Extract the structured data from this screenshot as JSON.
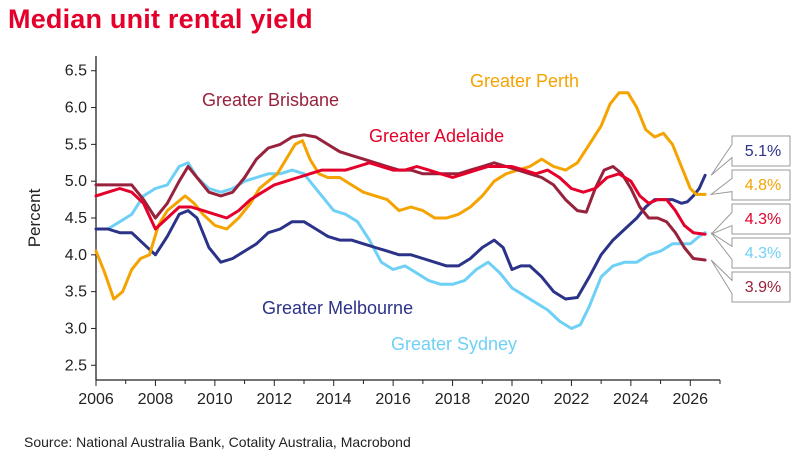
{
  "title": "Median unit rental yield",
  "source": "Source: National Australia Bank, Cotality Australia, Macrobond",
  "colors": {
    "title": "#e4002b",
    "Greater Perth": "#f5a300",
    "Greater Brisbane": "#98223c",
    "Greater Adelaide": "#e4002b",
    "Greater Melbourne": "#2b3388",
    "Greater Sydney": "#6fd0f6"
  },
  "chart_data": {
    "type": "line",
    "ylabel": "Percent",
    "xlabel": "",
    "xlim": [
      2006,
      2027
    ],
    "ylim": [
      2.3,
      6.7
    ],
    "xticks": [
      "2006",
      "2008",
      "2010",
      "2012",
      "2014",
      "2016",
      "2018",
      "2020",
      "2022",
      "2024",
      "2026"
    ],
    "yticks": [
      "2.5",
      "3.0",
      "3.5",
      "4.0",
      "4.5",
      "5.0",
      "5.5",
      "6.0",
      "6.5"
    ],
    "series": [
      {
        "name": "Greater Perth",
        "end_label": "4.8%",
        "points": [
          [
            2006,
            4.05
          ],
          [
            2006.3,
            3.75
          ],
          [
            2006.6,
            3.4
          ],
          [
            2006.9,
            3.5
          ],
          [
            2007.2,
            3.8
          ],
          [
            2007.5,
            3.95
          ],
          [
            2007.8,
            4.0
          ],
          [
            2008.1,
            4.4
          ],
          [
            2008.4,
            4.6
          ],
          [
            2008.7,
            4.7
          ],
          [
            2009.0,
            4.8
          ],
          [
            2009.3,
            4.7
          ],
          [
            2009.6,
            4.55
          ],
          [
            2010.0,
            4.4
          ],
          [
            2010.4,
            4.35
          ],
          [
            2010.8,
            4.5
          ],
          [
            2011.2,
            4.7
          ],
          [
            2011.5,
            4.9
          ],
          [
            2011.8,
            5.0
          ],
          [
            2012.1,
            5.1
          ],
          [
            2012.4,
            5.3
          ],
          [
            2012.7,
            5.5
          ],
          [
            2012.95,
            5.55
          ],
          [
            2013.2,
            5.3
          ],
          [
            2013.5,
            5.1
          ],
          [
            2013.8,
            5.05
          ],
          [
            2014.2,
            5.05
          ],
          [
            2014.6,
            4.95
          ],
          [
            2015.0,
            4.85
          ],
          [
            2015.4,
            4.8
          ],
          [
            2015.8,
            4.75
          ],
          [
            2016.2,
            4.6
          ],
          [
            2016.6,
            4.65
          ],
          [
            2017.0,
            4.6
          ],
          [
            2017.4,
            4.5
          ],
          [
            2017.8,
            4.5
          ],
          [
            2018.2,
            4.55
          ],
          [
            2018.6,
            4.65
          ],
          [
            2019.0,
            4.8
          ],
          [
            2019.4,
            5.0
          ],
          [
            2019.8,
            5.1
          ],
          [
            2020.2,
            5.15
          ],
          [
            2020.6,
            5.2
          ],
          [
            2021.0,
            5.3
          ],
          [
            2021.4,
            5.2
          ],
          [
            2021.8,
            5.15
          ],
          [
            2022.2,
            5.25
          ],
          [
            2022.6,
            5.5
          ],
          [
            2023.0,
            5.75
          ],
          [
            2023.3,
            6.05
          ],
          [
            2023.6,
            6.2
          ],
          [
            2023.9,
            6.2
          ],
          [
            2024.2,
            6.0
          ],
          [
            2024.5,
            5.7
          ],
          [
            2024.8,
            5.6
          ],
          [
            2025.1,
            5.65
          ],
          [
            2025.4,
            5.5
          ],
          [
            2025.7,
            5.2
          ],
          [
            2026.0,
            4.9
          ],
          [
            2026.2,
            4.82
          ],
          [
            2026.5,
            4.82
          ]
        ]
      },
      {
        "name": "Greater Brisbane",
        "end_label": "3.9%",
        "points": [
          [
            2006,
            4.95
          ],
          [
            2006.4,
            4.95
          ],
          [
            2006.8,
            4.95
          ],
          [
            2007.2,
            4.95
          ],
          [
            2007.6,
            4.75
          ],
          [
            2008.0,
            4.5
          ],
          [
            2008.4,
            4.7
          ],
          [
            2008.8,
            5.0
          ],
          [
            2009.1,
            5.2
          ],
          [
            2009.4,
            5.05
          ],
          [
            2009.8,
            4.85
          ],
          [
            2010.2,
            4.8
          ],
          [
            2010.6,
            4.85
          ],
          [
            2011.0,
            5.05
          ],
          [
            2011.4,
            5.3
          ],
          [
            2011.8,
            5.45
          ],
          [
            2012.2,
            5.5
          ],
          [
            2012.6,
            5.6
          ],
          [
            2013.0,
            5.63
          ],
          [
            2013.4,
            5.6
          ],
          [
            2013.8,
            5.5
          ],
          [
            2014.2,
            5.4
          ],
          [
            2014.6,
            5.35
          ],
          [
            2015.0,
            5.3
          ],
          [
            2015.4,
            5.25
          ],
          [
            2015.8,
            5.2
          ],
          [
            2016.2,
            5.15
          ],
          [
            2016.6,
            5.15
          ],
          [
            2017.0,
            5.1
          ],
          [
            2017.4,
            5.1
          ],
          [
            2017.8,
            5.1
          ],
          [
            2018.2,
            5.1
          ],
          [
            2018.6,
            5.15
          ],
          [
            2019.0,
            5.2
          ],
          [
            2019.4,
            5.25
          ],
          [
            2019.8,
            5.2
          ],
          [
            2020.2,
            5.15
          ],
          [
            2020.6,
            5.1
          ],
          [
            2021.0,
            5.05
          ],
          [
            2021.4,
            4.95
          ],
          [
            2021.8,
            4.75
          ],
          [
            2022.2,
            4.6
          ],
          [
            2022.5,
            4.58
          ],
          [
            2022.8,
            4.9
          ],
          [
            2023.1,
            5.15
          ],
          [
            2023.4,
            5.2
          ],
          [
            2023.7,
            5.1
          ],
          [
            2024.0,
            4.9
          ],
          [
            2024.3,
            4.65
          ],
          [
            2024.6,
            4.5
          ],
          [
            2024.9,
            4.5
          ],
          [
            2025.2,
            4.45
          ],
          [
            2025.5,
            4.3
          ],
          [
            2025.8,
            4.1
          ],
          [
            2026.1,
            3.95
          ],
          [
            2026.5,
            3.93
          ]
        ]
      },
      {
        "name": "Greater Adelaide",
        "end_label": "4.3%",
        "points": [
          [
            2006,
            4.8
          ],
          [
            2006.4,
            4.85
          ],
          [
            2006.8,
            4.9
          ],
          [
            2007.2,
            4.85
          ],
          [
            2007.6,
            4.7
          ],
          [
            2008.0,
            4.35
          ],
          [
            2008.4,
            4.5
          ],
          [
            2008.8,
            4.65
          ],
          [
            2009.2,
            4.65
          ],
          [
            2009.6,
            4.6
          ],
          [
            2010.0,
            4.55
          ],
          [
            2010.4,
            4.5
          ],
          [
            2010.8,
            4.6
          ],
          [
            2011.2,
            4.75
          ],
          [
            2011.6,
            4.85
          ],
          [
            2012.0,
            4.95
          ],
          [
            2012.4,
            5.0
          ],
          [
            2012.8,
            5.05
          ],
          [
            2013.2,
            5.1
          ],
          [
            2013.6,
            5.15
          ],
          [
            2014.0,
            5.15
          ],
          [
            2014.4,
            5.15
          ],
          [
            2014.8,
            5.2
          ],
          [
            2015.2,
            5.25
          ],
          [
            2015.6,
            5.2
          ],
          [
            2016.0,
            5.15
          ],
          [
            2016.4,
            5.15
          ],
          [
            2016.8,
            5.2
          ],
          [
            2017.2,
            5.15
          ],
          [
            2017.6,
            5.1
          ],
          [
            2018.0,
            5.05
          ],
          [
            2018.4,
            5.1
          ],
          [
            2018.8,
            5.15
          ],
          [
            2019.2,
            5.2
          ],
          [
            2019.6,
            5.2
          ],
          [
            2020.0,
            5.2
          ],
          [
            2020.4,
            5.15
          ],
          [
            2020.8,
            5.1
          ],
          [
            2021.2,
            5.15
          ],
          [
            2021.6,
            5.05
          ],
          [
            2022.0,
            4.9
          ],
          [
            2022.4,
            4.85
          ],
          [
            2022.8,
            4.9
          ],
          [
            2023.2,
            5.05
          ],
          [
            2023.6,
            5.1
          ],
          [
            2024.0,
            5.0
          ],
          [
            2024.3,
            4.8
          ],
          [
            2024.6,
            4.7
          ],
          [
            2024.9,
            4.75
          ],
          [
            2025.2,
            4.75
          ],
          [
            2025.5,
            4.6
          ],
          [
            2025.8,
            4.4
          ],
          [
            2026.1,
            4.3
          ],
          [
            2026.5,
            4.28
          ]
        ]
      },
      {
        "name": "Greater Melbourne",
        "end_label": "5.1%",
        "points": [
          [
            2006,
            4.35
          ],
          [
            2006.4,
            4.35
          ],
          [
            2006.8,
            4.3
          ],
          [
            2007.2,
            4.3
          ],
          [
            2007.6,
            4.15
          ],
          [
            2008.0,
            4.0
          ],
          [
            2008.4,
            4.25
          ],
          [
            2008.8,
            4.55
          ],
          [
            2009.1,
            4.6
          ],
          [
            2009.4,
            4.5
          ],
          [
            2009.8,
            4.1
          ],
          [
            2010.2,
            3.9
          ],
          [
            2010.6,
            3.95
          ],
          [
            2011.0,
            4.05
          ],
          [
            2011.4,
            4.15
          ],
          [
            2011.8,
            4.3
          ],
          [
            2012.2,
            4.35
          ],
          [
            2012.6,
            4.45
          ],
          [
            2013.0,
            4.45
          ],
          [
            2013.4,
            4.35
          ],
          [
            2013.8,
            4.25
          ],
          [
            2014.2,
            4.2
          ],
          [
            2014.6,
            4.2
          ],
          [
            2015.0,
            4.15
          ],
          [
            2015.4,
            4.1
          ],
          [
            2015.8,
            4.05
          ],
          [
            2016.2,
            4.0
          ],
          [
            2016.6,
            4.0
          ],
          [
            2017.0,
            3.95
          ],
          [
            2017.4,
            3.9
          ],
          [
            2017.8,
            3.85
          ],
          [
            2018.2,
            3.85
          ],
          [
            2018.6,
            3.95
          ],
          [
            2019.0,
            4.1
          ],
          [
            2019.4,
            4.2
          ],
          [
            2019.7,
            4.1
          ],
          [
            2020.0,
            3.8
          ],
          [
            2020.3,
            3.85
          ],
          [
            2020.6,
            3.85
          ],
          [
            2021.0,
            3.7
          ],
          [
            2021.4,
            3.5
          ],
          [
            2021.8,
            3.4
          ],
          [
            2022.2,
            3.42
          ],
          [
            2022.6,
            3.7
          ],
          [
            2023.0,
            4.0
          ],
          [
            2023.4,
            4.2
          ],
          [
            2023.8,
            4.35
          ],
          [
            2024.2,
            4.5
          ],
          [
            2024.5,
            4.65
          ],
          [
            2024.8,
            4.75
          ],
          [
            2025.1,
            4.75
          ],
          [
            2025.4,
            4.75
          ],
          [
            2025.7,
            4.7
          ],
          [
            2025.9,
            4.72
          ],
          [
            2026.1,
            4.8
          ],
          [
            2026.3,
            4.9
          ],
          [
            2026.5,
            5.08
          ]
        ]
      },
      {
        "name": "Greater Sydney",
        "end_label": "4.3%",
        "points": [
          [
            2006,
            4.35
          ],
          [
            2006.4,
            4.35
          ],
          [
            2006.8,
            4.45
          ],
          [
            2007.2,
            4.55
          ],
          [
            2007.6,
            4.8
          ],
          [
            2008.0,
            4.9
          ],
          [
            2008.4,
            4.95
          ],
          [
            2008.8,
            5.2
          ],
          [
            2009.1,
            5.25
          ],
          [
            2009.4,
            5.05
          ],
          [
            2009.8,
            4.9
          ],
          [
            2010.2,
            4.85
          ],
          [
            2010.6,
            4.9
          ],
          [
            2011.0,
            5.0
          ],
          [
            2011.4,
            5.05
          ],
          [
            2011.8,
            5.1
          ],
          [
            2012.2,
            5.1
          ],
          [
            2012.6,
            5.15
          ],
          [
            2013.0,
            5.1
          ],
          [
            2013.3,
            4.95
          ],
          [
            2013.6,
            4.8
          ],
          [
            2014.0,
            4.6
          ],
          [
            2014.4,
            4.55
          ],
          [
            2014.8,
            4.45
          ],
          [
            2015.2,
            4.2
          ],
          [
            2015.6,
            3.9
          ],
          [
            2016.0,
            3.8
          ],
          [
            2016.4,
            3.85
          ],
          [
            2016.8,
            3.75
          ],
          [
            2017.2,
            3.65
          ],
          [
            2017.6,
            3.6
          ],
          [
            2018.0,
            3.6
          ],
          [
            2018.4,
            3.65
          ],
          [
            2018.8,
            3.8
          ],
          [
            2019.2,
            3.9
          ],
          [
            2019.6,
            3.75
          ],
          [
            2020.0,
            3.55
          ],
          [
            2020.4,
            3.45
          ],
          [
            2020.8,
            3.35
          ],
          [
            2021.2,
            3.25
          ],
          [
            2021.6,
            3.1
          ],
          [
            2022.0,
            3.0
          ],
          [
            2022.3,
            3.05
          ],
          [
            2022.6,
            3.3
          ],
          [
            2023.0,
            3.7
          ],
          [
            2023.4,
            3.85
          ],
          [
            2023.8,
            3.9
          ],
          [
            2024.2,
            3.9
          ],
          [
            2024.6,
            4.0
          ],
          [
            2025.0,
            4.05
          ],
          [
            2025.4,
            4.15
          ],
          [
            2025.7,
            4.15
          ],
          [
            2026.0,
            4.15
          ],
          [
            2026.3,
            4.25
          ],
          [
            2026.5,
            4.3
          ]
        ]
      }
    ]
  }
}
